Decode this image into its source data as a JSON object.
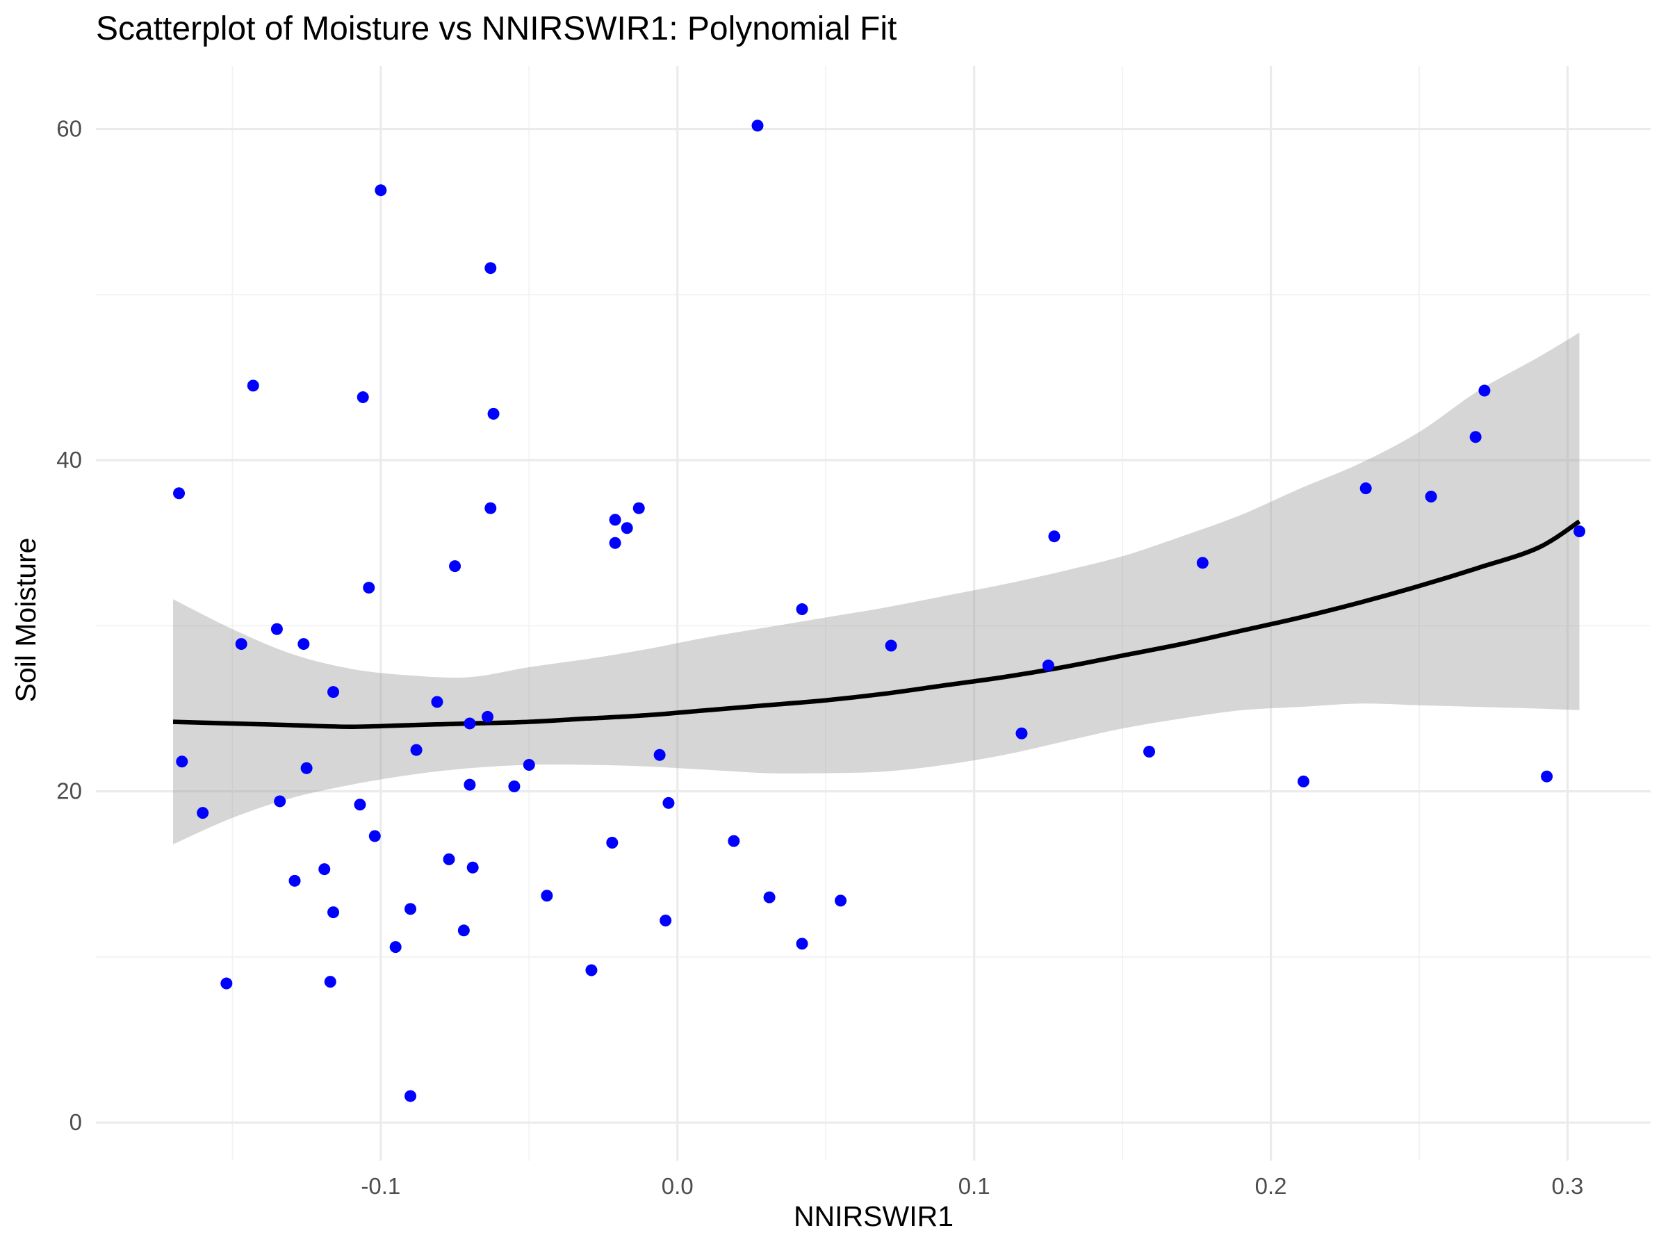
{
  "chart_data": {
    "type": "scatter",
    "title": "Scatterplot of Moisture vs NNIRSWIR1: Polynomial Fit",
    "xlabel": "NNIRSWIR1",
    "ylabel": "Soil Moisture",
    "xlim": [
      -0.196,
      0.328
    ],
    "ylim": [
      -2.3,
      63.8
    ],
    "x_ticks": [
      -0.1,
      0.0,
      0.1,
      0.2,
      0.3
    ],
    "x_tick_labels": [
      "-0.1",
      "0.0",
      "0.1",
      "0.2",
      "0.3"
    ],
    "y_ticks": [
      0,
      20,
      40,
      60
    ],
    "y_tick_labels": [
      "0",
      "20",
      "40",
      "60"
    ],
    "grid": true,
    "point_color": "#0000ff",
    "line_color": "#000000",
    "band_color": "#999999",
    "series": [
      {
        "type": "scatter",
        "x": [
          0.027,
          -0.1,
          -0.063,
          -0.143,
          -0.106,
          -0.062,
          -0.168,
          -0.063,
          -0.013,
          -0.021,
          -0.017,
          -0.021,
          -0.075,
          -0.104,
          -0.135,
          -0.147,
          -0.126,
          -0.116,
          -0.081,
          -0.064,
          -0.07,
          -0.088,
          -0.125,
          -0.05,
          -0.167,
          -0.07,
          -0.055,
          -0.134,
          -0.16,
          -0.107,
          -0.102,
          -0.077,
          -0.119,
          -0.069,
          -0.129,
          -0.044,
          -0.09,
          -0.116,
          -0.072,
          -0.095,
          -0.152,
          -0.117,
          -0.029,
          -0.09,
          -0.004,
          -0.006,
          -0.022,
          -0.003,
          0.019,
          0.031,
          0.042,
          0.055,
          0.042,
          0.072,
          0.116,
          0.125,
          0.127,
          0.159,
          0.177,
          0.211,
          0.232,
          0.254,
          0.269,
          0.272,
          0.293,
          0.304
        ],
        "y": [
          60.2,
          56.3,
          51.6,
          44.5,
          43.8,
          42.8,
          38.0,
          37.1,
          37.1,
          36.4,
          35.9,
          35.0,
          33.6,
          32.3,
          29.8,
          28.9,
          28.9,
          26.0,
          25.4,
          24.5,
          24.1,
          22.5,
          21.4,
          21.6,
          21.8,
          20.4,
          20.3,
          19.4,
          18.7,
          19.2,
          17.3,
          15.9,
          15.3,
          15.4,
          14.6,
          13.7,
          12.9,
          12.7,
          11.6,
          10.6,
          8.4,
          8.5,
          9.2,
          1.6,
          12.2,
          22.2,
          16.9,
          19.3,
          17.0,
          13.6,
          31.0,
          13.4,
          10.8,
          28.8,
          23.5,
          27.6,
          35.4,
          22.4,
          33.8,
          20.6,
          38.3,
          37.8,
          41.4,
          44.2,
          20.9,
          35.7
        ]
      },
      {
        "type": "line",
        "name": "",
        "x": [
          -0.17,
          -0.15,
          -0.13,
          -0.11,
          -0.09,
          -0.07,
          -0.05,
          -0.03,
          -0.01,
          0.01,
          0.03,
          0.05,
          0.07,
          0.09,
          0.11,
          0.13,
          0.15,
          0.17,
          0.19,
          0.21,
          0.23,
          0.25,
          0.27,
          0.29,
          0.304
        ],
        "y": [
          24.2,
          24.1,
          24.0,
          23.9,
          24.0,
          24.1,
          24.2,
          24.4,
          24.6,
          24.9,
          25.2,
          25.5,
          25.9,
          26.4,
          26.9,
          27.5,
          28.2,
          28.9,
          29.7,
          30.5,
          31.4,
          32.4,
          33.5,
          34.7,
          36.3
        ],
        "lower": [
          16.8,
          18.4,
          19.6,
          20.4,
          21.0,
          21.4,
          21.6,
          21.6,
          21.5,
          21.3,
          21.1,
          21.1,
          21.2,
          21.6,
          22.2,
          23.0,
          23.8,
          24.4,
          24.9,
          25.1,
          25.3,
          25.2,
          25.1,
          25.0,
          24.9
        ],
        "upper": [
          31.6,
          29.8,
          28.3,
          27.4,
          27.0,
          26.9,
          27.5,
          28.0,
          28.6,
          29.3,
          29.9,
          30.5,
          31.1,
          31.8,
          32.5,
          33.3,
          34.2,
          35.4,
          36.7,
          38.3,
          39.8,
          41.7,
          44.2,
          46.2,
          47.7
        ]
      }
    ]
  }
}
